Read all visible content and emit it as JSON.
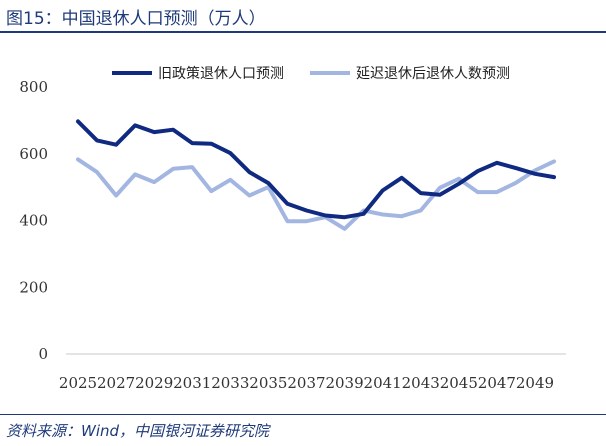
{
  "figure": {
    "title": "图15：中国退休人口预测（万人）",
    "source": "资料来源：Wind，中国银河证券研究院"
  },
  "colors": {
    "series1": "#0f2a80",
    "series2": "#a3b6e2",
    "axis": "#c8c8c8",
    "title": "#1f3a7a"
  },
  "chart_data": {
    "type": "line",
    "title": "中国退休人口预测（万人）",
    "xlabel": "",
    "ylabel": "",
    "ylim": [
      0,
      800
    ],
    "yticks": [
      0,
      200,
      400,
      600,
      800
    ],
    "x": [
      2025,
      2026,
      2027,
      2028,
      2029,
      2030,
      2031,
      2032,
      2033,
      2034,
      2035,
      2036,
      2037,
      2038,
      2039,
      2040,
      2041,
      2042,
      2043,
      2044,
      2045,
      2046,
      2047,
      2048,
      2049,
      2050
    ],
    "xtick_labels": [
      "2025",
      "2027",
      "2029",
      "2031",
      "2033",
      "2035",
      "2037",
      "2039",
      "2041",
      "2043",
      "2045",
      "2047",
      "2049"
    ],
    "legend_position": "top",
    "series": [
      {
        "name": "旧政策退休人口预测",
        "values": [
          697,
          640,
          627,
          685,
          665,
          672,
          632,
          630,
          602,
          545,
          512,
          450,
          430,
          415,
          410,
          420,
          490,
          528,
          482,
          477,
          510,
          548,
          573,
          557,
          540,
          530
        ]
      },
      {
        "name": "延迟退休后退休人数预测",
        "values": [
          583,
          545,
          475,
          538,
          515,
          555,
          560,
          488,
          522,
          475,
          500,
          398,
          398,
          410,
          375,
          430,
          418,
          413,
          430,
          498,
          525,
          485,
          485,
          513,
          550,
          577
        ]
      }
    ]
  }
}
